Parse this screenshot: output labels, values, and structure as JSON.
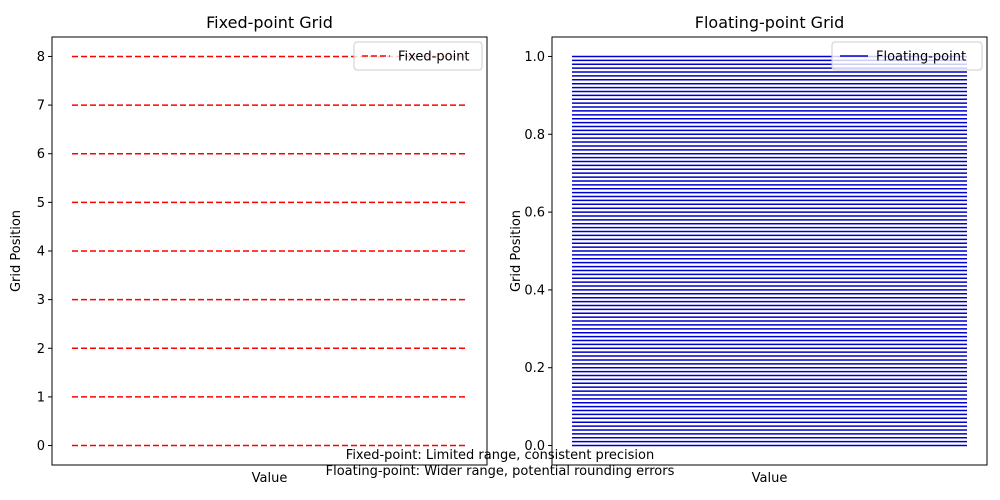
{
  "chart_data": [
    {
      "type": "line",
      "title": "Fixed-point Grid",
      "xlabel": "Value",
      "ylabel": "Grid Position",
      "ylim": [
        -0.4,
        8.4
      ],
      "yticks": [
        0,
        1,
        2,
        3,
        4,
        5,
        6,
        7,
        8
      ],
      "ytick_labels": [
        "0",
        "1",
        "2",
        "3",
        "4",
        "5",
        "6",
        "7",
        "8"
      ],
      "xticks_visible": false,
      "grid": false,
      "legend": "top-right",
      "series": [
        {
          "name": "Fixed-point",
          "style": "dashed",
          "color": "#ff0000",
          "values": [
            0,
            1,
            2,
            3,
            4,
            5,
            6,
            7,
            8
          ]
        }
      ]
    },
    {
      "type": "line",
      "title": "Floating-point Grid",
      "xlabel": "Value",
      "ylabel": "Grid Position",
      "ylim": [
        -0.05,
        1.05
      ],
      "yticks": [
        0.0,
        0.2,
        0.4,
        0.6,
        0.8,
        1.0
      ],
      "ytick_labels": [
        "0.0",
        "0.2",
        "0.4",
        "0.6",
        "0.8",
        "1.0"
      ],
      "xticks_visible": false,
      "grid": false,
      "legend": "top-right",
      "series": [
        {
          "name": "Floating-point",
          "style": "solid",
          "color": "#0000cc",
          "values": [
            0.0,
            0.01,
            0.02,
            0.03,
            0.04,
            0.05,
            0.06,
            0.07,
            0.08,
            0.09,
            0.1,
            0.11,
            0.12,
            0.13,
            0.14,
            0.15,
            0.16,
            0.17,
            0.18,
            0.19,
            0.2,
            0.21,
            0.22,
            0.23,
            0.24,
            0.25,
            0.26,
            0.27,
            0.28,
            0.29,
            0.3,
            0.31,
            0.32,
            0.33,
            0.34,
            0.35,
            0.36,
            0.37,
            0.38,
            0.39,
            0.4,
            0.41,
            0.42,
            0.43,
            0.44,
            0.45,
            0.46,
            0.47,
            0.48,
            0.49,
            0.5,
            0.51,
            0.52,
            0.53,
            0.54,
            0.55,
            0.56,
            0.57,
            0.58,
            0.59,
            0.6,
            0.61,
            0.62,
            0.63,
            0.64,
            0.65,
            0.66,
            0.67,
            0.68,
            0.69,
            0.7,
            0.71,
            0.72,
            0.73,
            0.74,
            0.75,
            0.76,
            0.77,
            0.78,
            0.79,
            0.8,
            0.81,
            0.82,
            0.83,
            0.84,
            0.85,
            0.86,
            0.87,
            0.88,
            0.89,
            0.9,
            0.91,
            0.92,
            0.93,
            0.94,
            0.95,
            0.96,
            0.97,
            0.98,
            0.99,
            1.0
          ]
        }
      ]
    }
  ],
  "captions": {
    "line1": "Fixed-point: Limited range, consistent precision",
    "line2": "Floating-point: Wider range, potential rounding errors"
  }
}
